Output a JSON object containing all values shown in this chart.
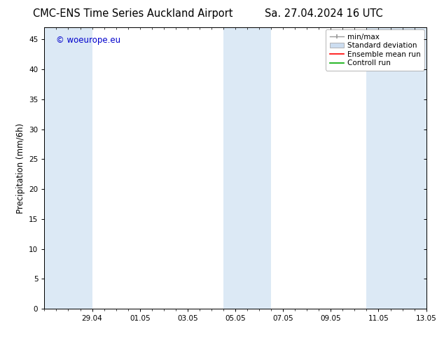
{
  "title_left": "CMC-ENS Time Series Auckland Airport",
  "title_right": "Sa. 27.04.2024 16 UTC",
  "ylabel": "Precipitation (mm/6h)",
  "watermark": "© woeurope.eu",
  "watermark_color": "#0000cc",
  "ylim": [
    0,
    47
  ],
  "yticks": [
    0,
    5,
    10,
    15,
    20,
    25,
    30,
    35,
    40,
    45
  ],
  "xlim": [
    0,
    16
  ],
  "xtick_labels": [
    "29.04",
    "01.05",
    "03.05",
    "05.05",
    "07.05",
    "09.05",
    "11.05",
    "13.05"
  ],
  "xtick_positions": [
    2,
    4,
    6,
    8,
    10,
    12,
    14,
    16
  ],
  "shaded_bands": [
    {
      "x_start": -0.1,
      "x_end": 2.0,
      "color": "#dce9f5"
    },
    {
      "x_start": 7.5,
      "x_end": 9.5,
      "color": "#dce9f5"
    },
    {
      "x_start": 13.5,
      "x_end": 16.1,
      "color": "#dce9f5"
    }
  ],
  "legend_entries": [
    {
      "label": "min/max",
      "color": "#aaaaaa",
      "type": "errorbar"
    },
    {
      "label": "Standard deviation",
      "color": "#ccddf0",
      "type": "box"
    },
    {
      "label": "Ensemble mean run",
      "color": "#ff0000",
      "type": "line"
    },
    {
      "label": "Controll run",
      "color": "#00aa00",
      "type": "line"
    }
  ],
  "bg_color": "#ffffff",
  "spine_color": "#000000",
  "title_fontsize": 10.5,
  "tick_fontsize": 7.5,
  "ylabel_fontsize": 8.5,
  "legend_fontsize": 7.5
}
